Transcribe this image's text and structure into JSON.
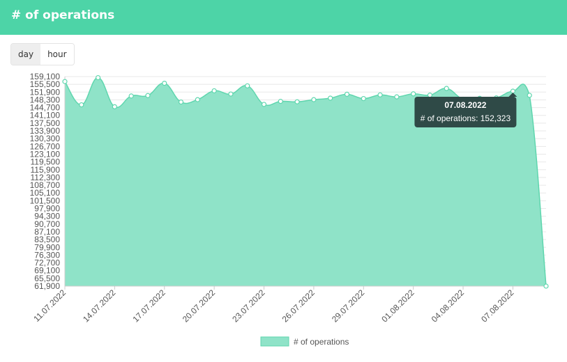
{
  "header": {
    "title": "# of operations"
  },
  "toggle": {
    "day_label": "day",
    "hour_label": "hour",
    "selected": "day"
  },
  "colors": {
    "header": "#4dd4a7",
    "area_fill": "#8fe3c8",
    "line": "#5fd6ae",
    "grid": "#e8e8e8",
    "tooltip_bg": "#2f4a47"
  },
  "tooltip": {
    "date": "07.08.2022",
    "text": "# of operations: 152,323"
  },
  "chart_data": {
    "type": "area",
    "title": "",
    "xlabel": "",
    "ylabel": "",
    "ylim": [
      61900,
      159100
    ],
    "yticks": [
      "159,100",
      "155,500",
      "151,900",
      "148,300",
      "144,700",
      "141,100",
      "137,500",
      "133,900",
      "130,300",
      "126,700",
      "123,100",
      "119,500",
      "115,900",
      "112,300",
      "108,700",
      "105,100",
      "101,500",
      "97,900",
      "94,300",
      "90,700",
      "87,100",
      "83,500",
      "79,900",
      "76,300",
      "72,700",
      "69,100",
      "65,500",
      "61,900"
    ],
    "xticks": [
      "11.07.2022",
      "14.07.2022",
      "17.07.2022",
      "20.07.2022",
      "23.07.2022",
      "26.07.2022",
      "29.07.2022",
      "01.08.2022",
      "04.08.2022",
      "07.08.2022"
    ],
    "legend": "bottom",
    "series": [
      {
        "name": "# of operations",
        "x": [
          "11.07.2022",
          "12.07.2022",
          "13.07.2022",
          "14.07.2022",
          "15.07.2022",
          "16.07.2022",
          "17.07.2022",
          "18.07.2022",
          "19.07.2022",
          "20.07.2022",
          "21.07.2022",
          "22.07.2022",
          "23.07.2022",
          "24.07.2022",
          "25.07.2022",
          "26.07.2022",
          "27.07.2022",
          "28.07.2022",
          "29.07.2022",
          "30.07.2022",
          "31.07.2022",
          "01.08.2022",
          "02.08.2022",
          "03.08.2022",
          "04.08.2022",
          "05.08.2022",
          "06.08.2022",
          "07.08.2022",
          "08.08.2022",
          "09.08.2022"
        ],
        "values": [
          156800,
          146000,
          158600,
          145100,
          150100,
          150300,
          156000,
          147300,
          148400,
          152500,
          151000,
          154800,
          146200,
          147600,
          147400,
          148400,
          149100,
          150900,
          148900,
          150600,
          149700,
          151100,
          150500,
          153600,
          148600,
          149000,
          149200,
          152323,
          150400,
          61900
        ]
      }
    ]
  }
}
